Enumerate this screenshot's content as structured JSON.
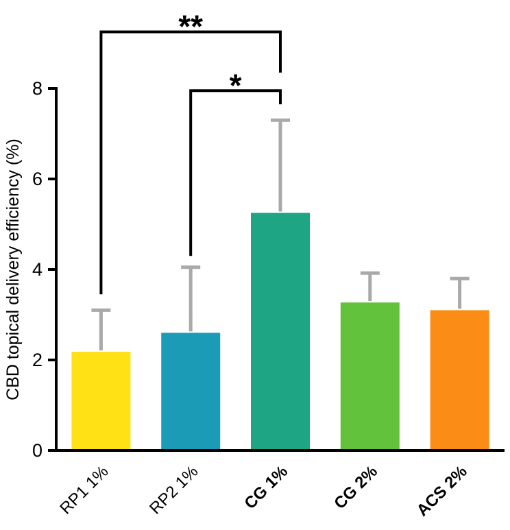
{
  "chart_data": {
    "type": "bar",
    "title": "",
    "ylabel": "CBD topical delivery efficiency (%)",
    "xlabel": "",
    "categories": [
      "RP1 1%",
      "RP2 1%",
      "CG 1%",
      "CG 2%",
      "ACS 2%"
    ],
    "values": [
      2.18,
      2.6,
      5.25,
      3.27,
      3.1
    ],
    "errors_up": [
      0.92,
      1.45,
      2.05,
      0.65,
      0.7
    ],
    "bar_colors": [
      "#FFE115",
      "#1B9BB5",
      "#1EA583",
      "#62C23C",
      "#FB8D17"
    ],
    "bold_categories": [
      false,
      false,
      true,
      true,
      true
    ],
    "ylim": [
      0,
      8
    ],
    "yticks": [
      0,
      2,
      4,
      6,
      8
    ],
    "grid": false,
    "legend": "none",
    "error_bar_color": "#A9A9A9",
    "axis_color": "#000000",
    "significance": [
      {
        "label": "**",
        "from_index": 0,
        "to_index": 2,
        "bracket_y": 9.25,
        "left_drop_to": 3.45,
        "right_drop_to": 8.35
      },
      {
        "label": "*",
        "from_index": 1,
        "to_index": 2,
        "bracket_y": 7.95,
        "left_drop_to": 4.3,
        "right_drop_to": 7.65
      }
    ]
  }
}
